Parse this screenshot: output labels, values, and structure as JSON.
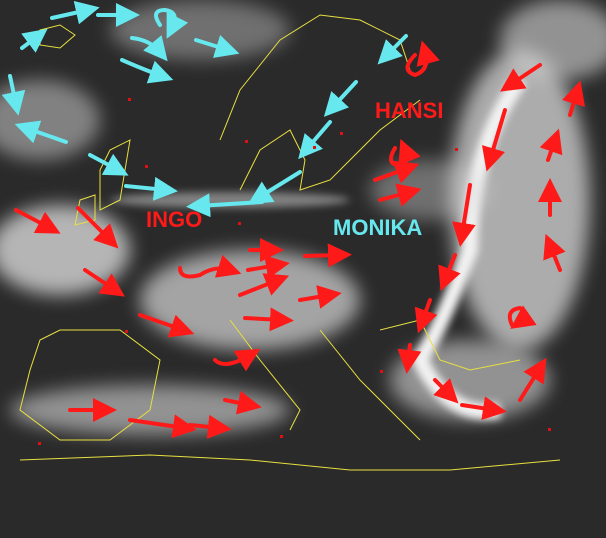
{
  "image": {
    "type": "satellite-infrared",
    "region": "Europe"
  },
  "colors": {
    "low_pressure": "#ff1a1a",
    "high_pressure": "#66e8ee",
    "borders": "#e8e040",
    "cities": "#dd1111"
  },
  "labels": [
    {
      "name": "HANSI",
      "color": "#ff1a1a"
    },
    {
      "name": "INGO",
      "color": "#ff1a1a"
    },
    {
      "name": "MONIKA",
      "color": "#66e8ee"
    }
  ]
}
